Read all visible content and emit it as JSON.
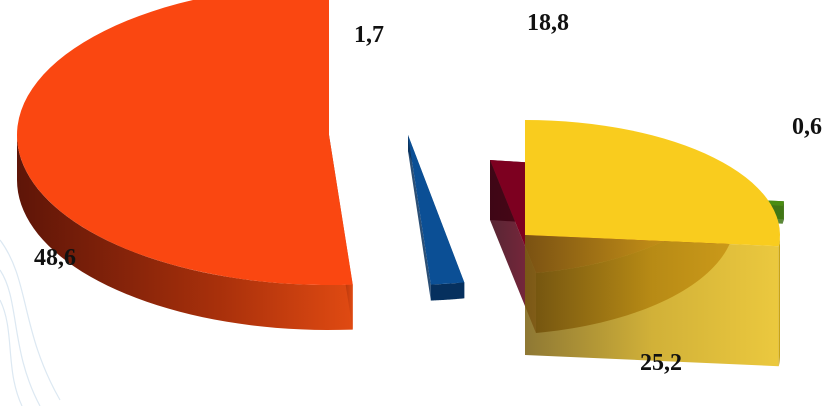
{
  "chart_data": {
    "type": "pie",
    "style": "3d-exploded",
    "title": "",
    "legend": "none",
    "slices": [
      {
        "value": 48.6,
        "label": "48,6",
        "color": "#fa4711"
      },
      {
        "value": 1.7,
        "label": "1,7",
        "color": "#0b4f95"
      },
      {
        "value": 18.8,
        "label": "18,8",
        "color": "#7d0020"
      },
      {
        "value": 0.6,
        "label": "0,6",
        "color": "#4a8d12"
      },
      {
        "value": 25.2,
        "label": "25,2",
        "color": "#f9cc1e"
      }
    ]
  }
}
